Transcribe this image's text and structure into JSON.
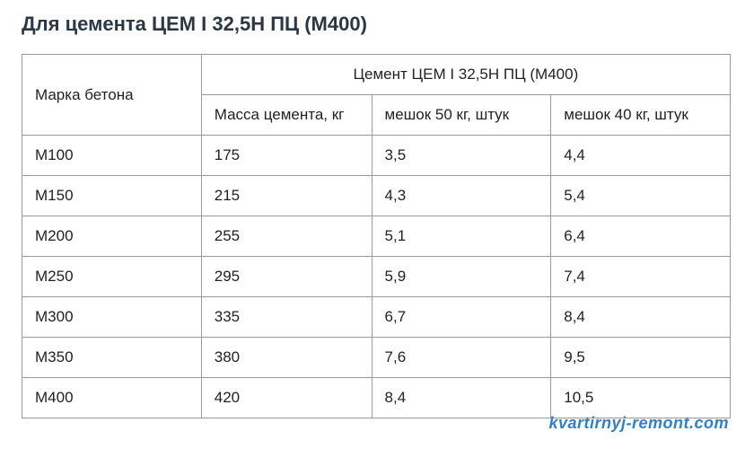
{
  "title": "Для цемента ЦЕМ I 32,5Н ПЦ (М400)",
  "table": {
    "header_brand": "Марка бетона",
    "header_group": "Цемент ЦЕМ I 32,5Н ПЦ (М400)",
    "header_mass": "Масса цемента, кг",
    "header_bag50": "мешок 50 кг, штук",
    "header_bag40": "мешок 40 кг, штук",
    "columns": [
      "brand",
      "mass",
      "bag50",
      "bag40"
    ],
    "col_widths": [
      "200px",
      "190px",
      "200px",
      "200px"
    ],
    "rows": [
      {
        "brand": "М100",
        "mass": "175",
        "bag50": "3,5",
        "bag40": "4,4"
      },
      {
        "brand": "М150",
        "mass": "215",
        "bag50": "4,3",
        "bag40": "5,4"
      },
      {
        "brand": "М200",
        "mass": "255",
        "bag50": "5,1",
        "bag40": "6,4"
      },
      {
        "brand": "М250",
        "mass": "295",
        "bag50": "5,9",
        "bag40": "7,4"
      },
      {
        "brand": "М300",
        "mass": "335",
        "bag50": "6,7",
        "bag40": "8,4"
      },
      {
        "brand": "М350",
        "mass": "380",
        "bag50": "7,6",
        "bag40": "9,5"
      },
      {
        "brand": "М400",
        "mass": "420",
        "bag50": "8,4",
        "bag40": "10,5"
      }
    ],
    "border_color": "#9a9a9a",
    "text_color": "#222",
    "title_color": "#2a3744",
    "background_color": "#ffffff",
    "font_size_title": 22,
    "font_size_cell": 17
  },
  "watermark": "kvartirnyj-remont.com",
  "watermark_color": "#2e7fd1"
}
